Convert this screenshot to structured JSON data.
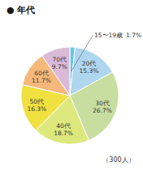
{
  "chart_data": {
    "type": "pie",
    "title": "● 年代",
    "subtitle": "（300人）",
    "categories": [
      "15〜19歳",
      "20代",
      "30代",
      "40代",
      "50代",
      "60代",
      "70代"
    ],
    "values": [
      1.7,
      15.3,
      26.7,
      18.7,
      16.3,
      11.7,
      9.7
    ],
    "value_labels": [
      "1.7%",
      "15.3%",
      "26.7%",
      "18.7%",
      "16.3%",
      "11.7%",
      "9.7%"
    ],
    "colors": [
      "#5bc8e8",
      "#aed6ef",
      "#c8dea0",
      "#dde87c",
      "#f0e040",
      "#f5b87a",
      "#dbbad8"
    ],
    "data_labels": true
  }
}
